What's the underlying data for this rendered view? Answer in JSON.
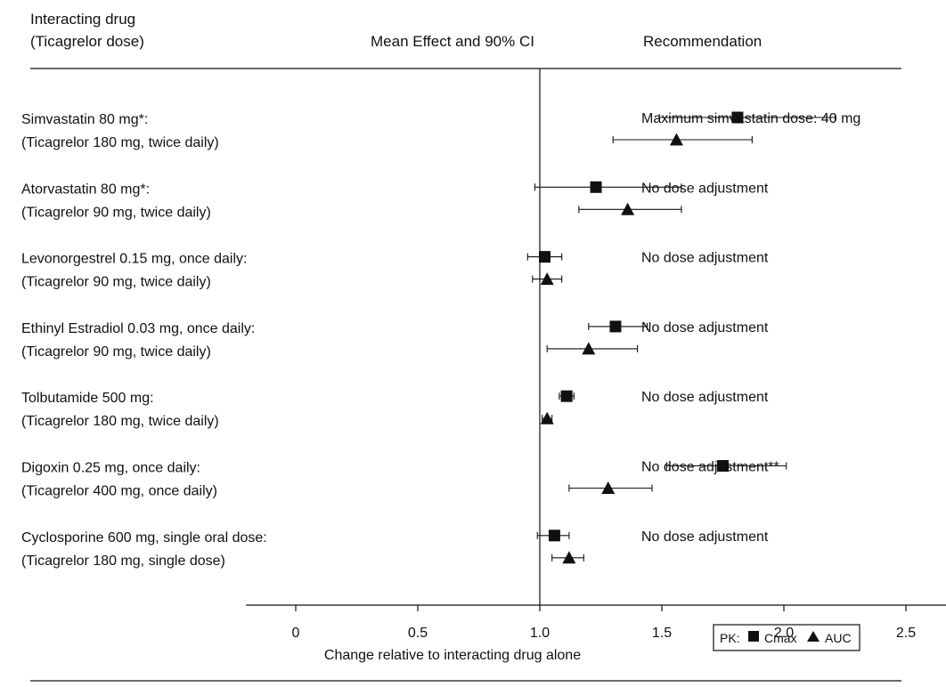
{
  "headers": {
    "drug_line1": "Interacting drug",
    "drug_line2": "(Ticagrelor dose)",
    "effect": "Mean Effect and 90% CI",
    "recommendation": "Recommendation"
  },
  "chart_data": {
    "type": "forest",
    "xlabel": "Change relative to interacting drug alone",
    "xlim": [
      -0.2,
      2.7
    ],
    "xticks": [
      0,
      0.5,
      1.0,
      1.5,
      2.0,
      2.5
    ],
    "xtick_labels": [
      "0",
      "0.5",
      "1.0",
      "1.5",
      "2.0",
      "2.5"
    ],
    "reference_line": 1.0,
    "legend": {
      "prefix": "PK:",
      "items": [
        {
          "marker": "square",
          "label": "Cmax"
        },
        {
          "marker": "triangle",
          "label": "AUC"
        }
      ]
    },
    "rows": [
      {
        "drug": "Simvastatin 80 mg*:",
        "dose": "(Ticagrelor 180 mg, twice daily)",
        "recommendation": "Maximum simvastatin dose: 40 mg",
        "cmax": {
          "mean": 1.81,
          "lo": 1.49,
          "hi": 2.21
        },
        "auc": {
          "mean": 1.56,
          "lo": 1.3,
          "hi": 1.87
        }
      },
      {
        "drug": "Atorvastatin 80 mg*:",
        "dose": "(Ticagrelor 90 mg, twice daily)",
        "recommendation": "No dose adjustment",
        "cmax": {
          "mean": 1.23,
          "lo": 0.98,
          "hi": 1.58
        },
        "auc": {
          "mean": 1.36,
          "lo": 1.16,
          "hi": 1.58
        }
      },
      {
        "drug": "Levonorgestrel 0.15 mg, once daily:",
        "dose": "(Ticagrelor 90 mg, twice daily)",
        "recommendation": "No dose adjustment",
        "cmax": {
          "mean": 1.02,
          "lo": 0.95,
          "hi": 1.09
        },
        "auc": {
          "mean": 1.03,
          "lo": 0.97,
          "hi": 1.09
        }
      },
      {
        "drug": "Ethinyl Estradiol 0.03 mg, once daily:",
        "dose": "(Ticagrelor 90 mg, twice daily)",
        "recommendation": "No dose adjustment",
        "cmax": {
          "mean": 1.31,
          "lo": 1.2,
          "hi": 1.44
        },
        "auc": {
          "mean": 1.2,
          "lo": 1.03,
          "hi": 1.4
        }
      },
      {
        "drug": "Tolbutamide 500 mg:",
        "dose": "(Ticagrelor 180 mg, twice daily)",
        "recommendation": "No dose adjustment",
        "cmax": {
          "mean": 1.11,
          "lo": 1.08,
          "hi": 1.14
        },
        "auc": {
          "mean": 1.03,
          "lo": 1.01,
          "hi": 1.05
        }
      },
      {
        "drug": "Digoxin 0.25 mg, once daily:",
        "dose": "(Ticagrelor 400 mg, once daily)",
        "recommendation": "No dose adjustment**",
        "cmax": {
          "mean": 1.75,
          "lo": 1.52,
          "hi": 2.01
        },
        "auc": {
          "mean": 1.28,
          "lo": 1.12,
          "hi": 1.46
        }
      },
      {
        "drug": "Cyclosporine 600 mg, single oral dose:",
        "dose": "(Ticagrelor 180 mg, single dose)",
        "recommendation": "No dose adjustment",
        "cmax": {
          "mean": 1.06,
          "lo": 0.99,
          "hi": 1.12
        },
        "auc": {
          "mean": 1.12,
          "lo": 1.05,
          "hi": 1.18
        }
      }
    ]
  }
}
